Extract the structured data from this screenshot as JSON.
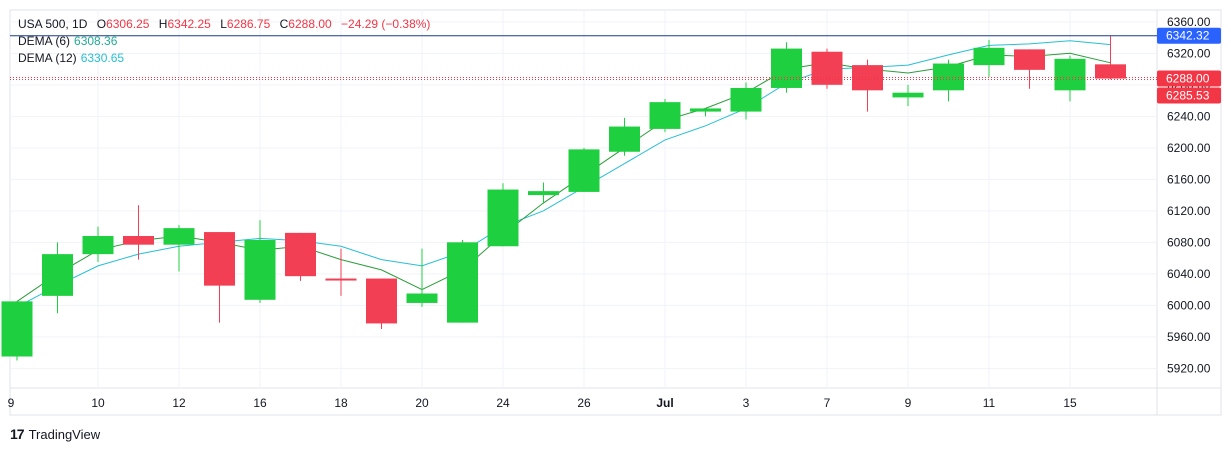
{
  "header": {
    "symbol": "USA 500, 1D",
    "open_label": "O",
    "open": "6306.25",
    "high_label": "H",
    "high": "6342.25",
    "low_label": "L",
    "low": "6286.75",
    "close_label": "C",
    "close": "6288.00",
    "change": "−24.29 (−0.38%)",
    "dema6_label": "DEMA (6)",
    "dema6_value": "6308.36",
    "dema12_label": "DEMA (12)",
    "dema12_value": "6330.65"
  },
  "brand": {
    "logo": "17",
    "name": "TradingView"
  },
  "colors": {
    "up": "#1ed03f",
    "down": "#f23f54",
    "dema6": "#2a9d3a",
    "dema12": "#26bfd6",
    "hline": "#1b3a8a",
    "price": "#f23645",
    "accent": "#2962ff"
  },
  "badges": {
    "high_line": "6342.32",
    "close": "6288.00",
    "bid": "6285.53"
  },
  "chart_data": {
    "type": "candlestick",
    "ylim": [
      5895,
      6375
    ],
    "y_ticks": [
      "6360.00",
      "6320.00",
      "6280.00",
      "6240.00",
      "6200.00",
      "6160.00",
      "6120.00",
      "6080.00",
      "6040.00",
      "6000.00",
      "5960.00",
      "5920.00"
    ],
    "y_tick_values": [
      6360,
      6320,
      6280,
      6240,
      6200,
      6160,
      6120,
      6080,
      6040,
      6000,
      5960,
      5920
    ],
    "x_ticks": [
      "9",
      "10",
      "12",
      "16",
      "18",
      "20",
      "24",
      "26",
      "Jul",
      "3",
      "7",
      "9",
      "11",
      "15"
    ],
    "x_tick_index": [
      -0.25,
      2,
      4,
      6,
      8,
      10,
      12,
      14,
      16,
      18,
      20,
      22,
      24,
      26
    ],
    "candles": [
      {
        "o": 5935,
        "h": 6005,
        "l": 5930,
        "c": 6005
      },
      {
        "o": 6012,
        "h": 6080,
        "l": 5990,
        "c": 6065
      },
      {
        "o": 6065,
        "h": 6100,
        "l": 6055,
        "c": 6088
      },
      {
        "o": 6088,
        "h": 6127,
        "l": 6058,
        "c": 6077
      },
      {
        "o": 6077,
        "h": 6102,
        "l": 6043,
        "c": 6098
      },
      {
        "o": 6093,
        "h": 6093,
        "l": 5978,
        "c": 6025
      },
      {
        "o": 6007,
        "h": 6108,
        "l": 6003,
        "c": 6083
      },
      {
        "o": 6092,
        "h": 6092,
        "l": 6031,
        "c": 6037
      },
      {
        "o": 6034,
        "h": 6072,
        "l": 6012,
        "c": 6032
      },
      {
        "o": 6034,
        "h": 6034,
        "l": 5970,
        "c": 5977
      },
      {
        "o": 6003,
        "h": 6072,
        "l": 5998,
        "c": 6015
      },
      {
        "o": 5978,
        "h": 6083,
        "l": 5978,
        "c": 6080
      },
      {
        "o": 6075,
        "h": 6155,
        "l": 6075,
        "c": 6147
      },
      {
        "o": 6140,
        "h": 6156,
        "l": 6129,
        "c": 6145
      },
      {
        "o": 6144,
        "h": 6200,
        "l": 6144,
        "c": 6198
      },
      {
        "o": 6195,
        "h": 6238,
        "l": 6190,
        "c": 6227
      },
      {
        "o": 6224,
        "h": 6262,
        "l": 6220,
        "c": 6258
      },
      {
        "o": 6246,
        "h": 6250,
        "l": 6240,
        "c": 6250
      },
      {
        "o": 6246,
        "h": 6283,
        "l": 6236,
        "c": 6276
      },
      {
        "o": 6276,
        "h": 6334,
        "l": 6270,
        "c": 6326
      },
      {
        "o": 6322,
        "h": 6326,
        "l": 6275,
        "c": 6280
      },
      {
        "o": 6305,
        "h": 6312,
        "l": 6246,
        "c": 6273
      },
      {
        "o": 6264,
        "h": 6280,
        "l": 6253,
        "c": 6270
      },
      {
        "o": 6273,
        "h": 6312,
        "l": 6259,
        "c": 6307
      },
      {
        "o": 6305,
        "h": 6337,
        "l": 6290,
        "c": 6327
      },
      {
        "o": 6325,
        "h": 6325,
        "l": 6275,
        "c": 6299
      },
      {
        "o": 6273,
        "h": 6317,
        "l": 6259,
        "c": 6313
      },
      {
        "o": 6306,
        "h": 6342,
        "l": 6287,
        "c": 6288
      }
    ],
    "dema6": [
      6005,
      6040,
      6070,
      6082,
      6088,
      6080,
      6070,
      6075,
      6058,
      6045,
      6020,
      6045,
      6090,
      6130,
      6165,
      6200,
      6235,
      6250,
      6270,
      6300,
      6308,
      6300,
      6295,
      6303,
      6318,
      6316,
      6320,
      6308
    ],
    "dema12": [
      5998,
      6025,
      6050,
      6065,
      6075,
      6080,
      6085,
      6082,
      6075,
      6058,
      6050,
      6068,
      6100,
      6120,
      6150,
      6180,
      6210,
      6228,
      6250,
      6282,
      6300,
      6302,
      6305,
      6318,
      6330,
      6332,
      6336,
      6331
    ]
  }
}
